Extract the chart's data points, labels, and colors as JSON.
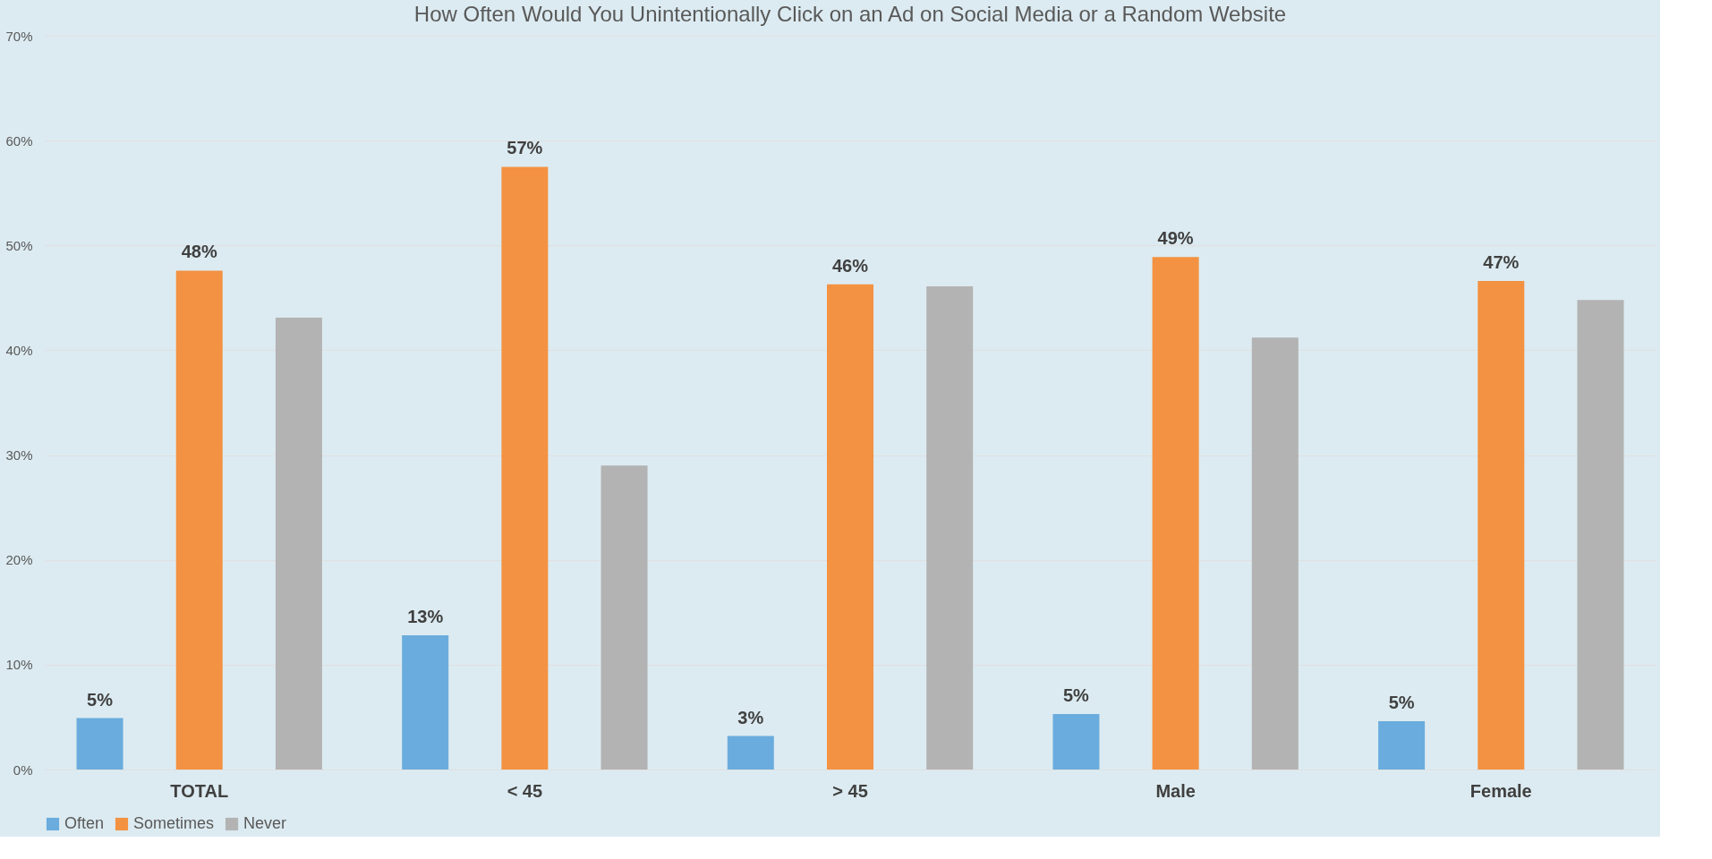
{
  "chart_data": {
    "type": "bar",
    "title": "How Often Would You Unintentionally Click on an Ad on Social Media or a Random Website",
    "categories": [
      "TOTAL",
      "< 45",
      "> 45",
      "Male",
      "Female"
    ],
    "series": [
      {
        "name": "Often",
        "color": "#6aacdd",
        "values": [
          4.9,
          12.8,
          3.2,
          5.3,
          4.6
        ],
        "value_labels": [
          "5%",
          "13%",
          "3%",
          "5%",
          "5%"
        ]
      },
      {
        "name": "Sometimes",
        "color": "#f39242",
        "values": [
          47.6,
          57.5,
          46.3,
          48.9,
          46.6
        ],
        "value_labels": [
          "48%",
          "57%",
          "46%",
          "49%",
          "47%"
        ]
      },
      {
        "name": "Never",
        "color": "#b3b3b3",
        "values": [
          43.1,
          29.0,
          46.1,
          41.2,
          44.8
        ]
      }
    ],
    "ylim": [
      0,
      70
    ],
    "yticks": [
      {
        "value": 0,
        "label": "0%"
      },
      {
        "value": 10,
        "label": "10%"
      },
      {
        "value": 20,
        "label": "20%"
      },
      {
        "value": 30,
        "label": "30%"
      },
      {
        "value": 40,
        "label": "40%"
      },
      {
        "value": 50,
        "label": "50%"
      },
      {
        "value": 60,
        "label": "60%"
      },
      {
        "value": 70,
        "label": "70%"
      }
    ],
    "grid": "y",
    "legend": "bottom"
  }
}
